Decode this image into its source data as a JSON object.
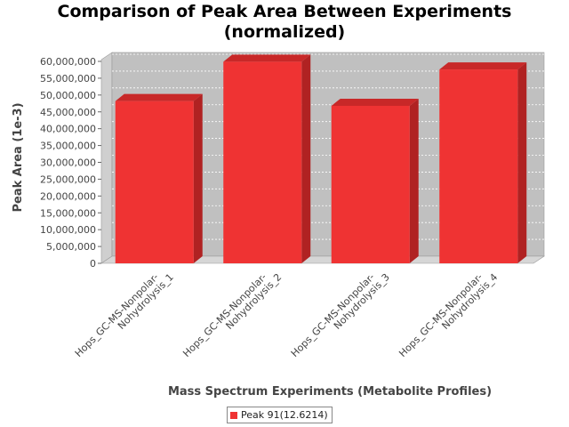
{
  "title_line1": "Comparison of Peak Area Between Experiments",
  "title_line2": "(normalized)",
  "chart_data": {
    "type": "bar",
    "title": "Comparison of Peak Area Between Experiments (normalized)",
    "xlabel": "Mass Spectrum Experiments (Metabolite Profiles)",
    "ylabel": "Peak Area (1e-3)",
    "categories": [
      [
        "Hops_GC-MS-Nonpolar-",
        "Nohydrolysis_1"
      ],
      [
        "Hops_GC-MS-Nonpolar-",
        "Nohydrolysis_2"
      ],
      [
        "Hops_GC-MS-Nonpolar-",
        "Nohydrolysis_3"
      ],
      [
        "Hops_GC-MS-Nonpolar-",
        "Nohydrolysis_4"
      ]
    ],
    "series": [
      {
        "name": "Peak 91(12.6214)",
        "values": [
          48200000,
          59900000,
          46800000,
          57600000
        ]
      }
    ],
    "ylim": [
      0,
      60000000
    ],
    "yticks": [
      0,
      5000000,
      10000000,
      15000000,
      20000000,
      25000000,
      30000000,
      35000000,
      40000000,
      45000000,
      50000000,
      55000000,
      60000000
    ],
    "ytick_labels": [
      "0",
      "5,000,000",
      "10,000,000",
      "15,000,000",
      "20,000,000",
      "25,000,000",
      "30,000,000",
      "35,000,000",
      "40,000,000",
      "45,000,000",
      "50,000,000",
      "55,000,000",
      "60,000,000"
    ],
    "grid": true,
    "legend_position": "bottom"
  },
  "colors": {
    "bar_face": "#ef3333",
    "bar_side": "#b02222",
    "bar_top": "#c82828",
    "plot_back": "#c0c0c0",
    "plot_floor": "#d6d6d6",
    "plot_wall": "#cfcfcf"
  }
}
